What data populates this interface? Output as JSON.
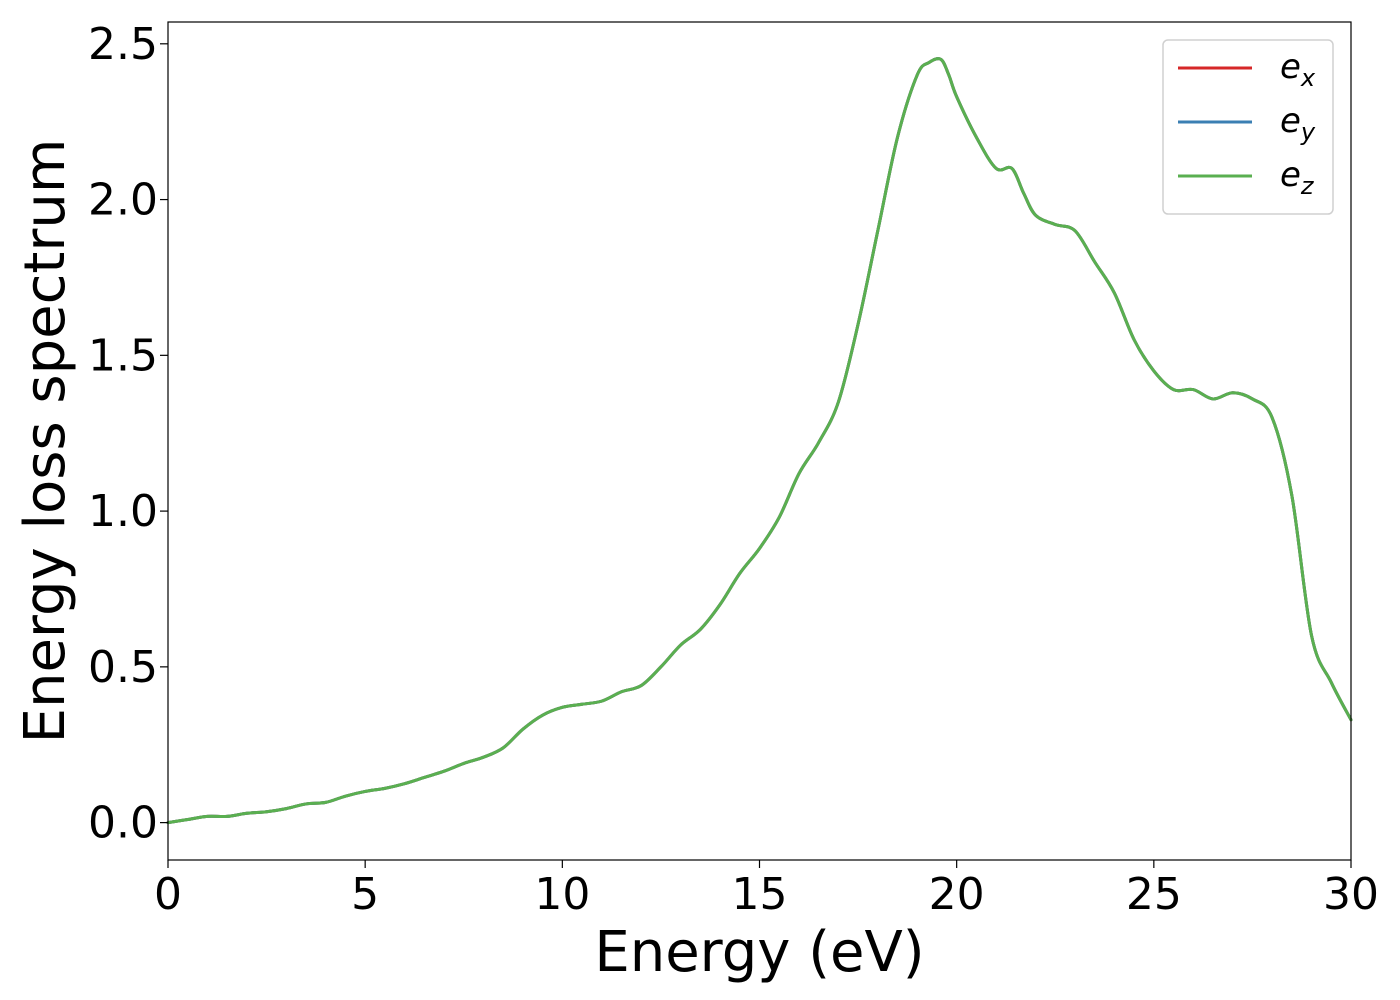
{
  "chart_data": {
    "type": "line",
    "title": "",
    "xlabel": "Energy (eV)",
    "ylabel": "Energy loss spectrum",
    "xlim": [
      0,
      30
    ],
    "ylim": [
      -0.12,
      2.57
    ],
    "x_ticks": [
      0,
      5,
      10,
      15,
      20,
      25,
      30
    ],
    "x_tick_labels": [
      "0",
      "5",
      "10",
      "15",
      "20",
      "25",
      "30"
    ],
    "y_ticks": [
      0.0,
      0.5,
      1.0,
      1.5,
      2.0,
      2.5
    ],
    "y_tick_labels": [
      "0.0",
      "0.5",
      "1.0",
      "1.5",
      "2.0",
      "2.5"
    ],
    "grid": false,
    "legend_position": "top-right",
    "x": [
      0,
      0.5,
      1,
      1.5,
      2,
      2.5,
      3,
      3.5,
      4,
      4.5,
      5,
      5.5,
      6,
      6.5,
      7,
      7.5,
      8,
      8.5,
      9,
      9.5,
      10,
      10.5,
      11,
      11.5,
      12,
      12.5,
      13,
      13.5,
      14,
      14.5,
      15,
      15.5,
      16,
      16.5,
      17,
      17.5,
      18,
      18.5,
      19,
      19.3,
      19.6,
      19.8,
      20,
      20.5,
      21,
      21.4,
      21.7,
      22,
      22.5,
      23,
      23.5,
      24,
      24.5,
      25,
      25.5,
      26,
      26.5,
      27,
      27.5,
      28,
      28.5,
      29,
      29.5,
      30
    ],
    "series": [
      {
        "name": "e",
        "subscript": "x",
        "color": "#d62728",
        "values": [
          0.0,
          0.01,
          0.02,
          0.02,
          0.03,
          0.035,
          0.045,
          0.06,
          0.065,
          0.085,
          0.1,
          0.11,
          0.125,
          0.145,
          0.165,
          0.19,
          0.21,
          0.24,
          0.3,
          0.345,
          0.37,
          0.38,
          0.39,
          0.42,
          0.44,
          0.5,
          0.57,
          0.62,
          0.7,
          0.8,
          0.88,
          0.98,
          1.12,
          1.22,
          1.35,
          1.6,
          1.9,
          2.2,
          2.4,
          2.44,
          2.45,
          2.4,
          2.33,
          2.2,
          2.1,
          2.1,
          2.02,
          1.95,
          1.92,
          1.9,
          1.8,
          1.7,
          1.55,
          1.45,
          1.39,
          1.39,
          1.36,
          1.38,
          1.36,
          1.3,
          1.05,
          0.6,
          0.45,
          0.33
        ]
      },
      {
        "name": "e",
        "subscript": "y",
        "color": "#3b7fb3",
        "values": [
          0.0,
          0.01,
          0.02,
          0.02,
          0.03,
          0.035,
          0.045,
          0.06,
          0.065,
          0.085,
          0.1,
          0.11,
          0.125,
          0.145,
          0.165,
          0.19,
          0.21,
          0.24,
          0.3,
          0.345,
          0.37,
          0.38,
          0.39,
          0.42,
          0.44,
          0.5,
          0.57,
          0.62,
          0.7,
          0.8,
          0.88,
          0.98,
          1.12,
          1.22,
          1.35,
          1.6,
          1.9,
          2.2,
          2.4,
          2.44,
          2.45,
          2.4,
          2.33,
          2.2,
          2.1,
          2.1,
          2.02,
          1.95,
          1.92,
          1.9,
          1.8,
          1.7,
          1.55,
          1.45,
          1.39,
          1.39,
          1.36,
          1.38,
          1.36,
          1.3,
          1.05,
          0.6,
          0.45,
          0.33
        ]
      },
      {
        "name": "e",
        "subscript": "z",
        "color": "#5aaf50",
        "values": [
          0.0,
          0.01,
          0.02,
          0.02,
          0.03,
          0.035,
          0.045,
          0.06,
          0.065,
          0.085,
          0.1,
          0.11,
          0.125,
          0.145,
          0.165,
          0.19,
          0.21,
          0.24,
          0.3,
          0.345,
          0.37,
          0.38,
          0.39,
          0.42,
          0.44,
          0.5,
          0.57,
          0.62,
          0.7,
          0.8,
          0.88,
          0.98,
          1.12,
          1.22,
          1.35,
          1.6,
          1.9,
          2.2,
          2.4,
          2.44,
          2.45,
          2.4,
          2.33,
          2.2,
          2.1,
          2.1,
          2.02,
          1.95,
          1.92,
          1.9,
          1.8,
          1.7,
          1.55,
          1.45,
          1.39,
          1.39,
          1.36,
          1.38,
          1.36,
          1.3,
          1.05,
          0.6,
          0.45,
          0.33
        ]
      }
    ]
  }
}
